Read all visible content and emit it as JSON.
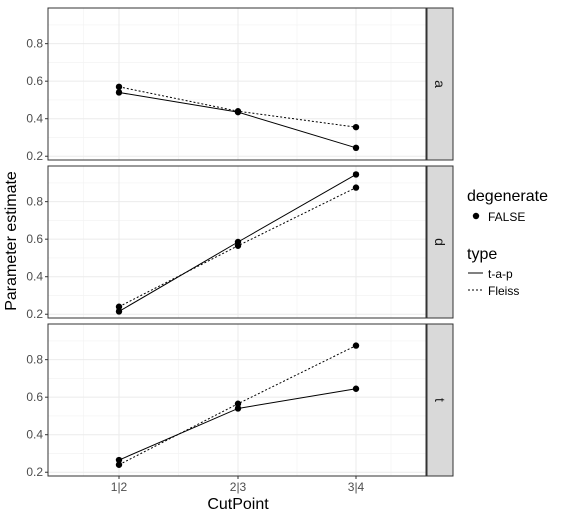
{
  "chart_data": {
    "type": "line",
    "xlabel": "CutPoint",
    "ylabel": "Parameter estimate",
    "categories": [
      "1|2",
      "2|3",
      "3|4"
    ],
    "ylim": [
      0.18,
      0.99
    ],
    "yticks": [
      "0.2",
      "0.4",
      "0.6",
      "0.8"
    ],
    "grid": true,
    "legend_placement": "right",
    "panels": [
      {
        "label": "a",
        "series": [
          {
            "name": "t-a-p",
            "values": [
              0.54,
              0.435,
              0.245
            ]
          },
          {
            "name": "Fleiss",
            "values": [
              0.57,
              0.44,
              0.355
            ]
          }
        ]
      },
      {
        "label": "d",
        "series": [
          {
            "name": "t-a-p",
            "values": [
              0.215,
              0.585,
              0.945
            ]
          },
          {
            "name": "Fleiss",
            "values": [
              0.24,
              0.565,
              0.875
            ]
          }
        ]
      },
      {
        "label": "t",
        "series": [
          {
            "name": "t-a-p",
            "values": [
              0.265,
              0.54,
              0.645
            ]
          },
          {
            "name": "Fleiss",
            "values": [
              0.24,
              0.565,
              0.875
            ]
          }
        ]
      }
    ],
    "legend": {
      "degenerate": {
        "title": "degenerate",
        "items": [
          "FALSE"
        ]
      },
      "type": {
        "title": "type",
        "items": [
          "t-a-p",
          "Fleiss"
        ]
      }
    }
  }
}
